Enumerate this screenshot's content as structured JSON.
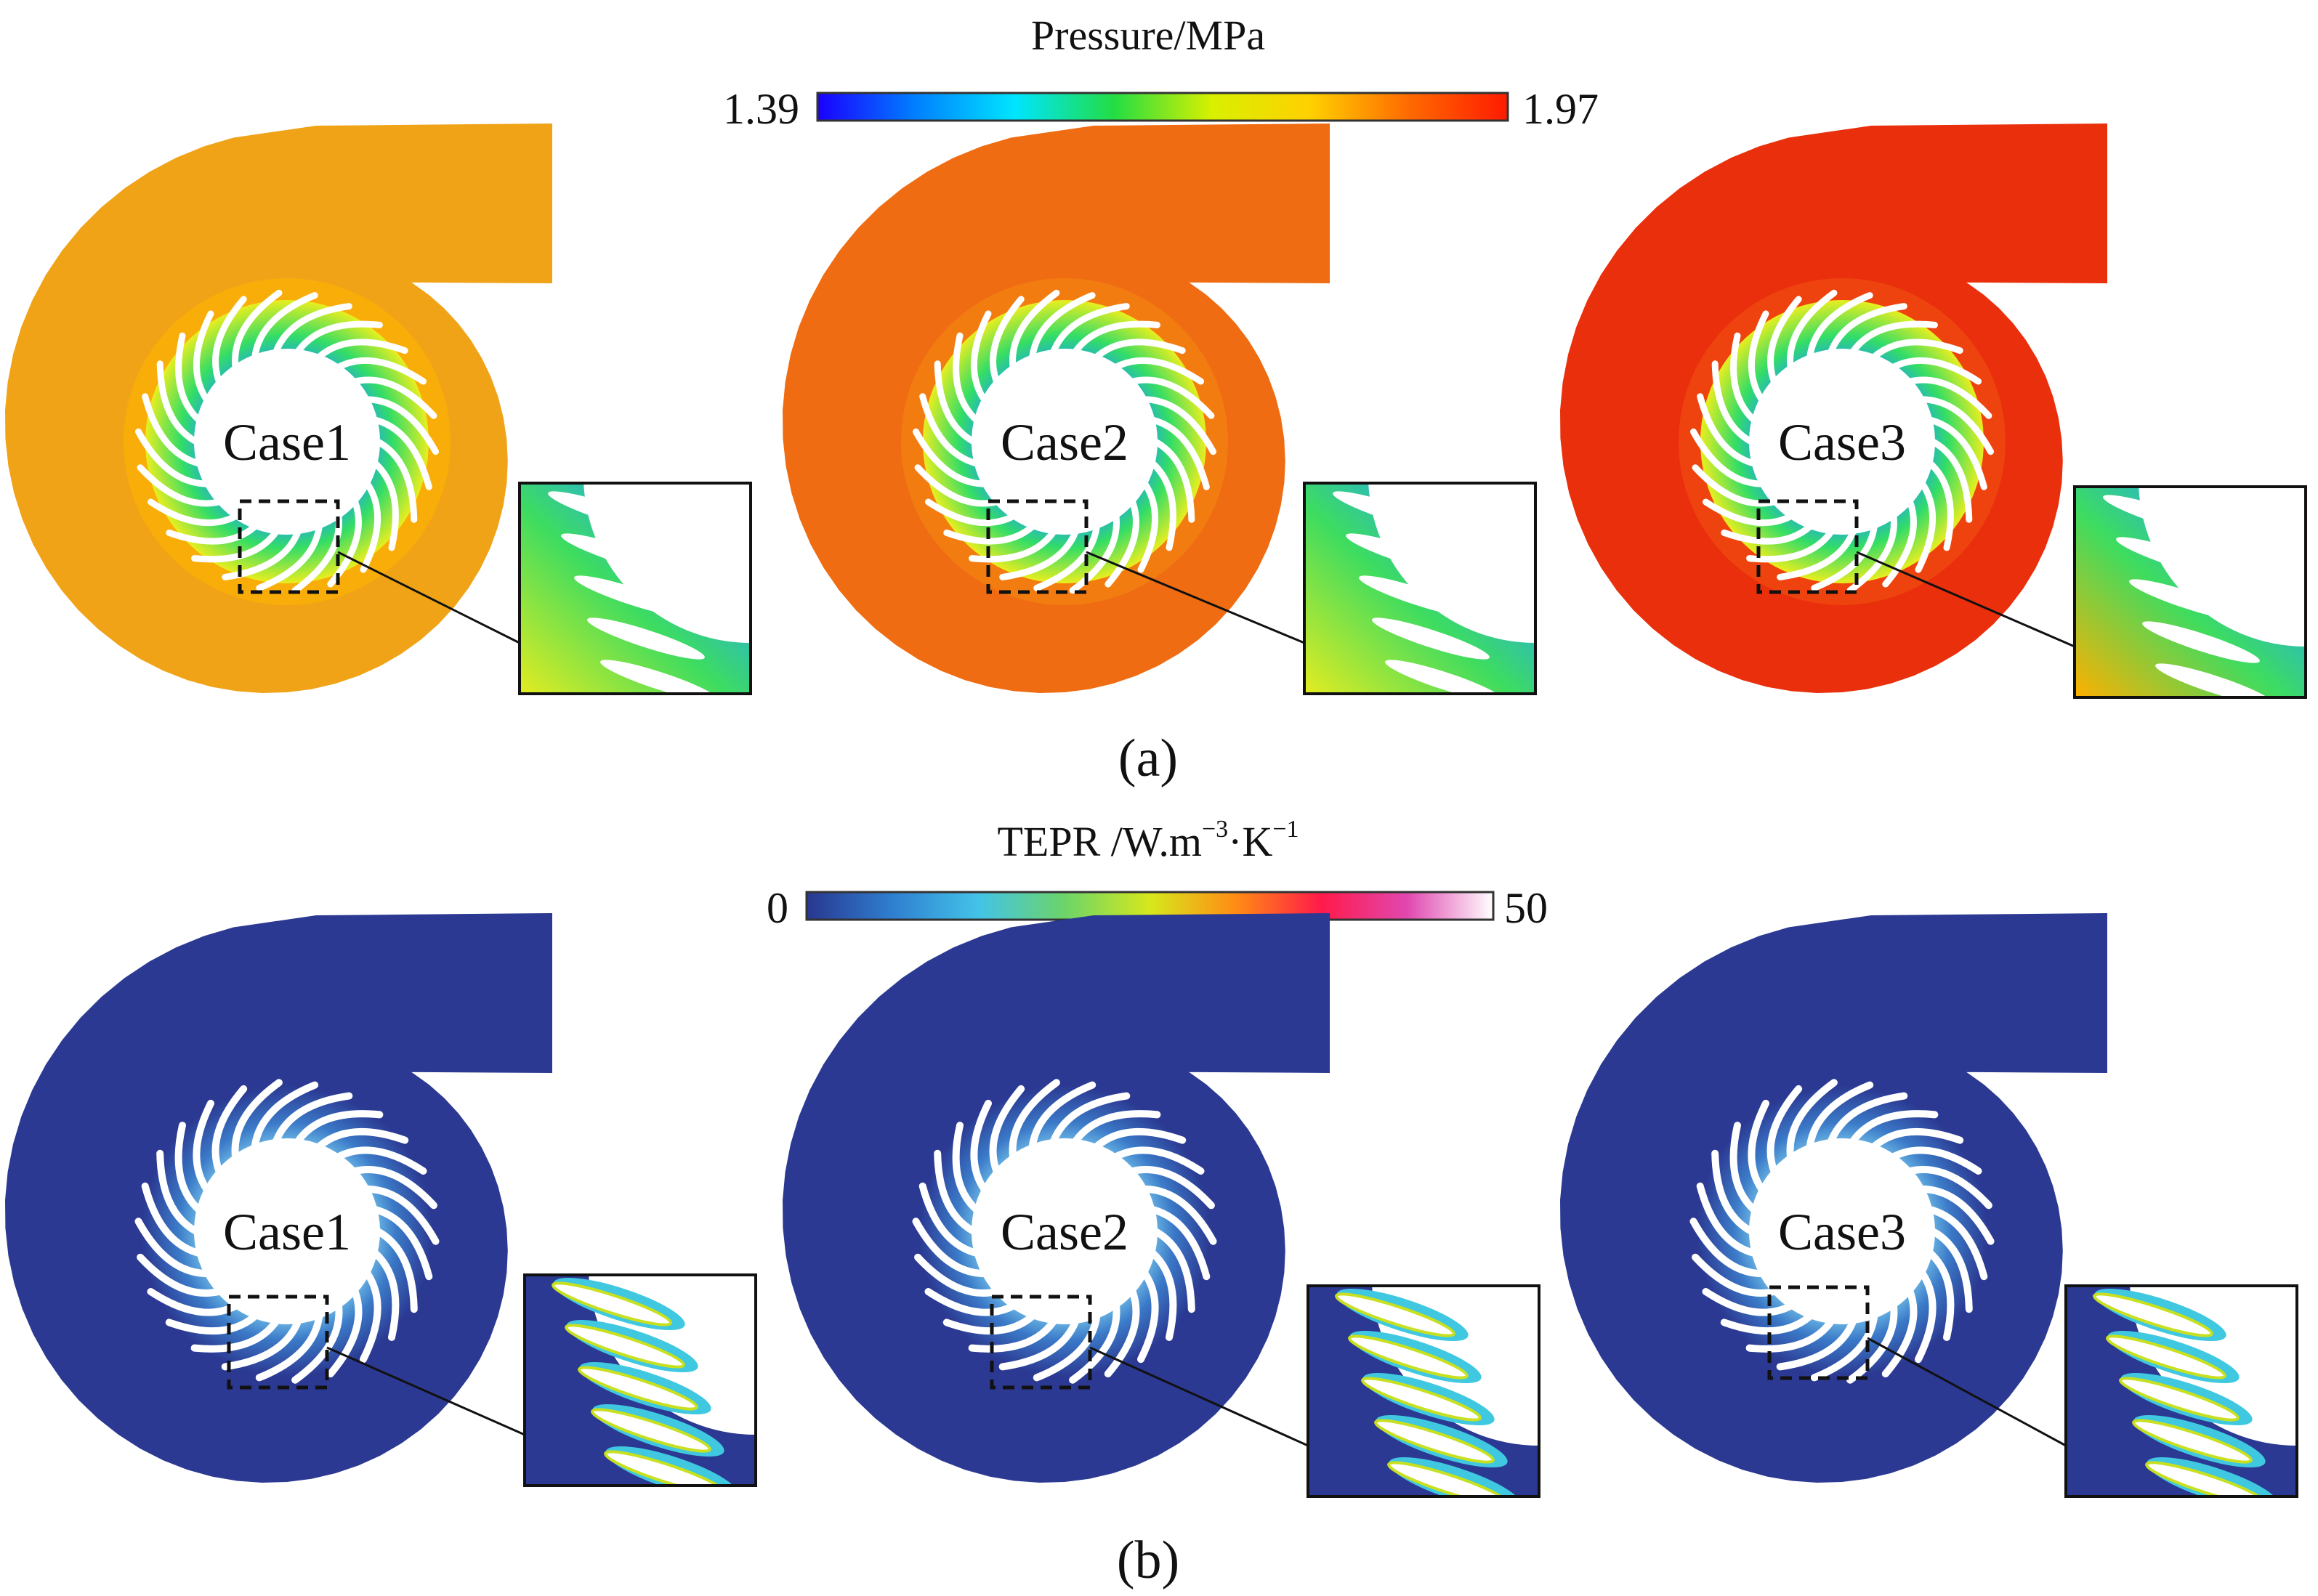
{
  "panel_a": {
    "colorbar": {
      "title": "Pressure/MPa",
      "min_label": "1.39",
      "max_label": "1.97",
      "stops": [
        "#1a00ff",
        "#0080ff",
        "#00e5ff",
        "#22dd44",
        "#d8f000",
        "#ffd000",
        "#ff6a00",
        "#ff1a00"
      ]
    },
    "cases": [
      {
        "label": "Case1",
        "volute_color": "#f0a316",
        "volute_edge": "#ffb600"
      },
      {
        "label": "Case2",
        "volute_color": "#ef6c12",
        "volute_edge": "#f58a10"
      },
      {
        "label": "Case3",
        "volute_color": "#ea2f0c",
        "volute_edge": "#f05410"
      }
    ],
    "ring_colors": {
      "inner": "#1fa0f0",
      "mid": "#33dd66",
      "outer": "#e8ee20"
    },
    "caption": "(a)"
  },
  "panel_b": {
    "colorbar": {
      "title": "TEPR /W.m",
      "title_sup1": "−3",
      "title_mid": "·K",
      "title_sup2": "−1",
      "min_label": "0",
      "max_label": "50",
      "stops": [
        "#28378f",
        "#2f7fd0",
        "#43c3e8",
        "#6cd46a",
        "#d6e81c",
        "#ff8c14",
        "#ff1a4a",
        "#e048b0",
        "#ffffff"
      ]
    },
    "cases": [
      {
        "label": "Case1",
        "volute_color": "#2b3992"
      },
      {
        "label": "Case2",
        "volute_color": "#2b3992"
      },
      {
        "label": "Case3",
        "volute_color": "#2b3992"
      }
    ],
    "caption": "(b)"
  }
}
